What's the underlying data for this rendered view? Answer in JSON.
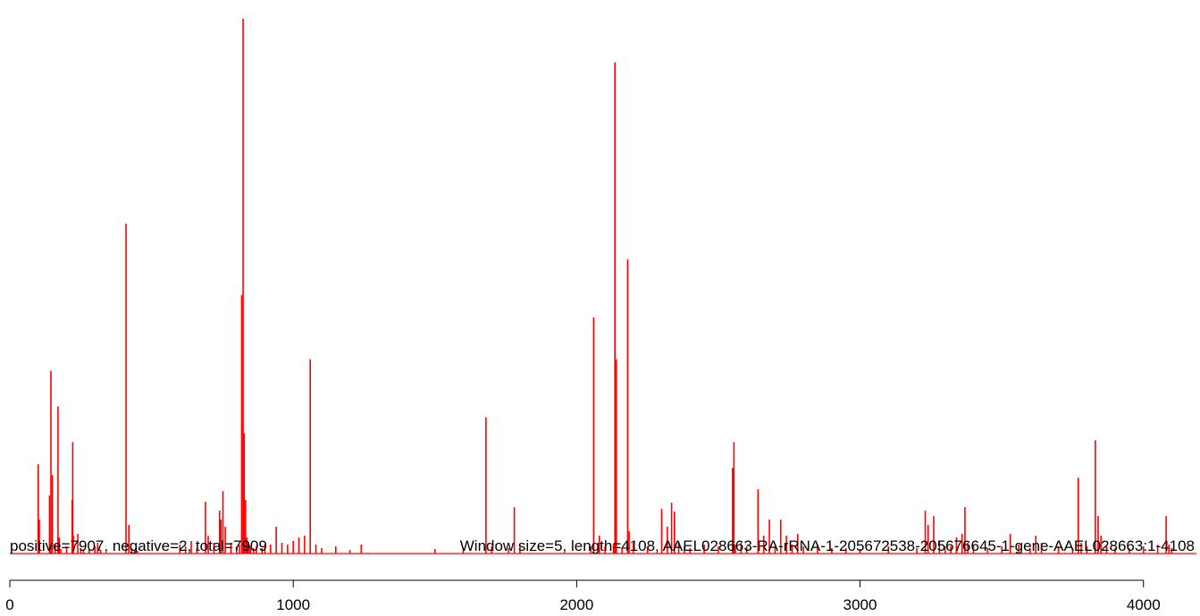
{
  "chart_data": {
    "type": "bar",
    "title": "",
    "xlabel": "",
    "ylabel": "",
    "xlim": [
      0,
      4108
    ],
    "x_ticks": [
      {
        "value": 0,
        "label": "0"
      },
      {
        "value": 1000,
        "label": "1000"
      },
      {
        "value": 2000,
        "label": "2000"
      },
      {
        "value": 3000,
        "label": "3000"
      },
      {
        "value": 4000,
        "label": "4000"
      }
    ],
    "ymax": 600,
    "bar_color": "#ff0000",
    "annotations": [
      {
        "text": "positive=7907, negative=2, total=7909",
        "x": 0,
        "align": "start"
      },
      {
        "text": "Window size=5, length=4108, AAEL028663-RA-rRNA-1-205672538-205676645-1-gene-AAEL028663:1-4108",
        "x": 4108,
        "align": "end"
      }
    ],
    "series": [
      {
        "x": [
          100,
          104,
          140,
          145,
          150,
          160,
          170,
          174,
          180,
          200,
          220,
          222,
          224,
          240,
          250,
          260,
          280,
          300,
          310,
          320,
          410,
          420,
          430,
          440,
          450,
          600,
          620,
          640,
          660,
          690,
          700,
          720,
          740,
          745,
          752,
          760,
          780,
          800,
          810,
          818,
          823,
          827,
          832,
          836,
          840,
          845,
          850,
          860,
          870,
          890,
          900,
          920,
          940,
          960,
          980,
          1000,
          1020,
          1040,
          1060,
          1080,
          1100,
          1150,
          1200,
          1240,
          1500,
          1600,
          1680,
          1700,
          1760,
          1780,
          1800,
          2050,
          2060,
          2080,
          2100,
          2130,
          2135,
          2140,
          2160,
          2180,
          2185,
          2200,
          2250,
          2300,
          2320,
          2335,
          2345,
          2360,
          2380,
          2400,
          2450,
          2500,
          2550,
          2555,
          2560,
          2580,
          2600,
          2640,
          2660,
          2680,
          2700,
          2720,
          2740,
          2760,
          2780,
          2800,
          2850,
          2900,
          2950,
          3000,
          3100,
          3200,
          3230,
          3240,
          3260,
          3280,
          3300,
          3320,
          3340,
          3360,
          3370,
          3380,
          3400,
          3450,
          3500,
          3530,
          3560,
          3600,
          3620,
          3640,
          3700,
          3750,
          3770,
          3780,
          3800,
          3830,
          3840,
          3850,
          3870,
          3900,
          3950,
          4000,
          4050,
          4080,
          4090,
          4100
        ],
        "y": [
          100,
          38,
          65,
          205,
          88,
          10,
          165,
          18,
          5,
          8,
          60,
          125,
          20,
          22,
          6,
          4,
          5,
          8,
          12,
          4,
          370,
          32,
          6,
          4,
          3,
          10,
          8,
          14,
          6,
          58,
          20,
          12,
          48,
          38,
          70,
          30,
          12,
          8,
          10,
          290,
          600,
          135,
          60,
          18,
          12,
          10,
          8,
          6,
          8,
          6,
          10,
          10,
          30,
          12,
          10,
          14,
          18,
          20,
          218,
          10,
          6,
          8,
          4,
          10,
          5,
          6,
          153,
          8,
          6,
          52,
          10,
          8,
          265,
          20,
          8,
          10,
          551,
          218,
          6,
          330,
          25,
          12,
          8,
          50,
          30,
          57,
          47,
          12,
          8,
          6,
          10,
          8,
          96,
          125,
          10,
          12,
          8,
          72,
          20,
          38,
          8,
          38,
          20,
          10,
          22,
          8,
          10,
          6,
          6,
          5,
          8,
          6,
          48,
          32,
          42,
          14,
          8,
          8,
          18,
          22,
          52,
          12,
          10,
          6,
          8,
          22,
          10,
          6,
          20,
          12,
          8,
          6,
          85,
          12,
          8,
          127,
          42,
          20,
          8,
          6,
          6,
          8,
          10,
          42,
          10,
          6
        ]
      }
    ]
  }
}
